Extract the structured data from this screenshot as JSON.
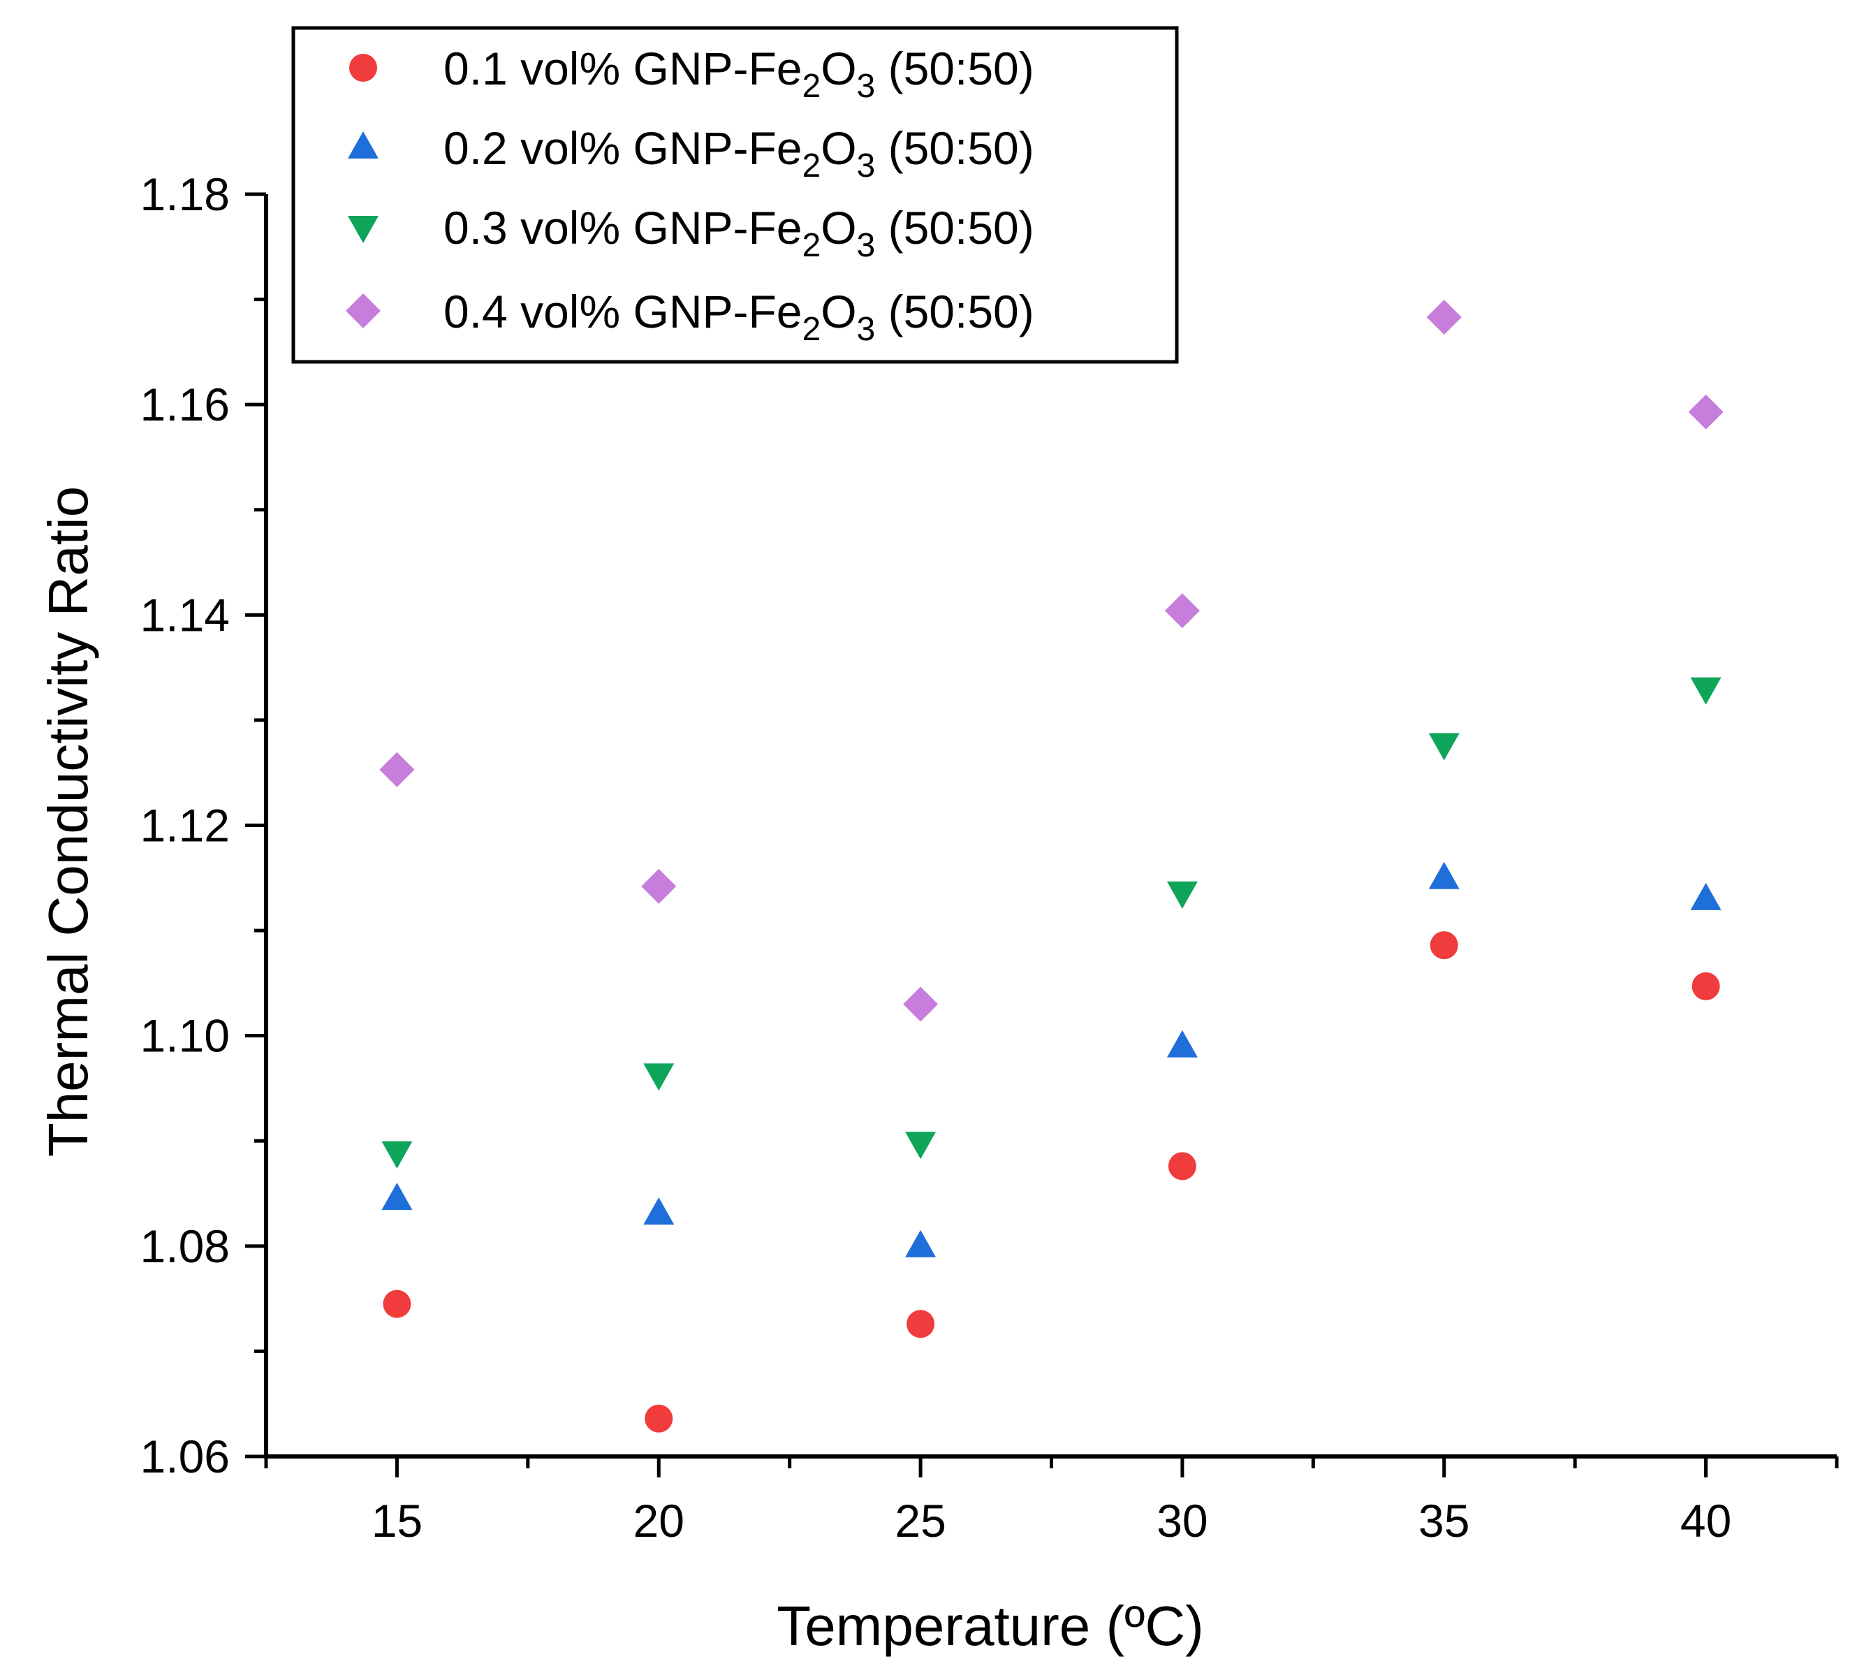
{
  "chart_data": {
    "type": "scatter",
    "title": "",
    "xlabel": "Temperature (ºC)",
    "ylabel": "Thermal Conductivity Ratio",
    "xlim": [
      12.5,
      42.5
    ],
    "ylim": [
      1.06,
      1.18
    ],
    "x": [
      15,
      20,
      25,
      30,
      35,
      40
    ],
    "x_tick_labels": [
      "15",
      "20",
      "25",
      "30",
      "35",
      "40"
    ],
    "y_ticks": [
      1.06,
      1.08,
      1.1,
      1.12,
      1.14,
      1.16,
      1.18
    ],
    "y_tick_labels": [
      "1.06",
      "1.08",
      "1.10",
      "1.12",
      "1.14",
      "1.16",
      "1.18"
    ],
    "grid": false,
    "legend_position": "top-left",
    "series": [
      {
        "name": "0.1 vol% GNP-Fe2O3 (50:50)",
        "label_prefix": "0.1 vol% GNP-Fe",
        "label_sub1": "2",
        "label_mid": "O",
        "label_sub2": "3",
        "label_suffix": " (50:50)",
        "marker": "circle",
        "color": "#f03c3c",
        "values": [
          1.0745,
          1.0636,
          1.0726,
          1.0876,
          1.1086,
          1.1047
        ]
      },
      {
        "name": "0.2 vol% GNP-Fe2O3 (50:50)",
        "label_prefix": "0.2 vol% GNP-Fe",
        "label_sub1": "2",
        "label_mid": "O",
        "label_sub2": "3",
        "label_suffix": " (50:50)",
        "marker": "triangle-up",
        "color": "#1e6fd9",
        "values": [
          1.0845,
          1.0831,
          1.08,
          1.099,
          1.115,
          1.113
        ]
      },
      {
        "name": "0.3 vol% GNP-Fe2O3 (50:50)",
        "label_prefix": "0.3 vol% GNP-Fe",
        "label_sub1": "2",
        "label_mid": "O",
        "label_sub2": "3",
        "label_suffix": " (50:50)",
        "marker": "triangle-down",
        "color": "#0ea55a",
        "values": [
          1.0889,
          1.0963,
          1.0898,
          1.1136,
          1.1277,
          1.133
        ]
      },
      {
        "name": "0.4 vol% GNP-Fe2O3 (50:50)",
        "label_prefix": "0.4 vol% GNP-Fe",
        "label_sub1": "2",
        "label_mid": "O",
        "label_sub2": "3",
        "label_suffix": " (50:50)",
        "marker": "diamond",
        "color": "#c77ddb",
        "values": [
          1.1253,
          1.1142,
          1.103,
          1.1404,
          1.1683,
          1.1593
        ]
      }
    ]
  }
}
